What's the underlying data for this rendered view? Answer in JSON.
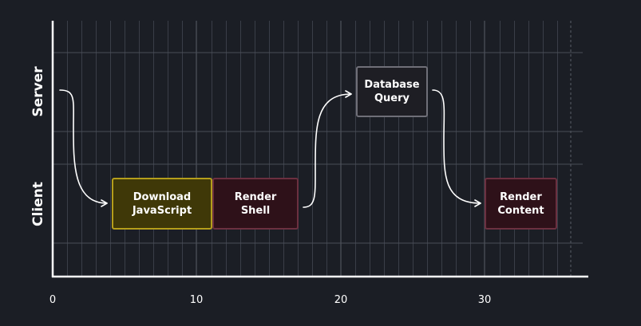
{
  "lanes": {
    "server": "Server",
    "client": "Client"
  },
  "axis": {
    "ticks": [
      "0",
      "10",
      "20",
      "30"
    ]
  },
  "blocks": {
    "download": {
      "line1": "Download",
      "line2": "JavaScript"
    },
    "render_shell": {
      "line1": "Render",
      "line2": "Shell"
    },
    "db_query": {
      "line1": "Database",
      "line2": "Query"
    },
    "render_content": {
      "line1": "Render",
      "line2": "Content"
    }
  },
  "colors": {
    "background": "#1b1e25",
    "download_fill": "#3f3808",
    "download_border": "#b59e1b",
    "render_fill": "#2e1119",
    "render_border": "#6b3040",
    "db_fill": "#1e1e24",
    "db_border": "#6f6f78"
  }
}
